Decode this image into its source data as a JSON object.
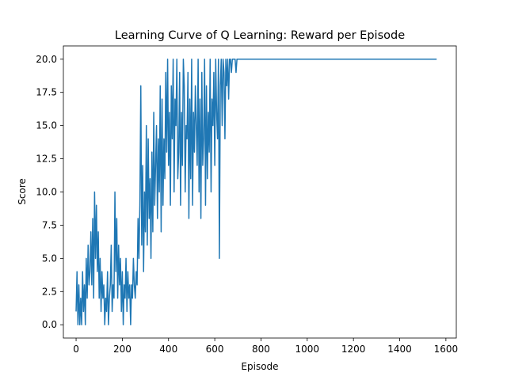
{
  "chart_data": {
    "type": "line",
    "title": "Learning Curve of Q Learning: Reward per Episode",
    "xlabel": "Episode",
    "ylabel": "Score",
    "xlim": [
      -55,
      1645
    ],
    "ylim": [
      -1,
      21
    ],
    "xticks": [
      0,
      200,
      400,
      600,
      800,
      1000,
      1200,
      1400,
      1600
    ],
    "xtick_labels": [
      "0",
      "200",
      "400",
      "600",
      "800",
      "1000",
      "1200",
      "1400",
      "1600"
    ],
    "yticks": [
      0,
      2.5,
      5,
      7.5,
      10,
      12.5,
      15,
      17.5,
      20
    ],
    "ytick_labels": [
      "0.0",
      "2.5",
      "5.0",
      "7.5",
      "10.0",
      "12.5",
      "15.0",
      "17.5",
      "20.0"
    ],
    "grid": false,
    "line_color": "#1f77b4",
    "series": [
      {
        "x": [
          0,
          4,
          8,
          12,
          16,
          20,
          24,
          28,
          32,
          36,
          40,
          44,
          48,
          52,
          56,
          60,
          64,
          68,
          72,
          76,
          80,
          84,
          88,
          92,
          96,
          100,
          104,
          108,
          112,
          116,
          120,
          124,
          128,
          132,
          136,
          140,
          144,
          148,
          152,
          156,
          160,
          164,
          168,
          172,
          176,
          180,
          184,
          188,
          192,
          196,
          200,
          204,
          208,
          212,
          216,
          220,
          224,
          228,
          232,
          236,
          240,
          244,
          248,
          252,
          256,
          260,
          264,
          268,
          272,
          276,
          280,
          284,
          288,
          292,
          296,
          300,
          304,
          308,
          312,
          316,
          320,
          324,
          328,
          332,
          336,
          340,
          344,
          348,
          352,
          356,
          360,
          364,
          368,
          372,
          376,
          380,
          384,
          388,
          392,
          396,
          400,
          404,
          408,
          412,
          416,
          420,
          424,
          428,
          432,
          436,
          440,
          444,
          448,
          452,
          456,
          460,
          464,
          468,
          472,
          476,
          480,
          484,
          488,
          492,
          496,
          500,
          504,
          508,
          512,
          516,
          520,
          524,
          528,
          532,
          536,
          540,
          544,
          548,
          552,
          556,
          560,
          564,
          568,
          572,
          576,
          580,
          584,
          588,
          592,
          596,
          600,
          604,
          608,
          612,
          616,
          620,
          624,
          628,
          632,
          636,
          640,
          644,
          648,
          652,
          656,
          660,
          664,
          668,
          672,
          676,
          680,
          684,
          688,
          692,
          696,
          700,
          704,
          720,
          800,
          900,
          1000,
          1100,
          1200,
          1300,
          1400,
          1500,
          1560
        ],
        "y": [
          1,
          4,
          0,
          3,
          0,
          2,
          0,
          4,
          1,
          3,
          0,
          5,
          2,
          6,
          3,
          4,
          7,
          3,
          8,
          2,
          10,
          5,
          9,
          4,
          7,
          2,
          5,
          1,
          4,
          2,
          3,
          0,
          2,
          1,
          4,
          0,
          2,
          3,
          6,
          1,
          3,
          2,
          10,
          4,
          8,
          2,
          6,
          3,
          5,
          1,
          4,
          0,
          3,
          2,
          5,
          1,
          4,
          2,
          3,
          0,
          3,
          2,
          5,
          3,
          2,
          4,
          3,
          8,
          5,
          9,
          18,
          6,
          12,
          4,
          10,
          7,
          15,
          6,
          14,
          8,
          11,
          5,
          13,
          7,
          16,
          9,
          12,
          15,
          8,
          14,
          10,
          18,
          7,
          17,
          9,
          14,
          11,
          19,
          13,
          20,
          12,
          16,
          9,
          18,
          14,
          20,
          10,
          17,
          15,
          20,
          11,
          13,
          19,
          9,
          16,
          12,
          20,
          18,
          10,
          15,
          14,
          19,
          8,
          17,
          11,
          20,
          9,
          16,
          13,
          18,
          15,
          12,
          20,
          10,
          17,
          8,
          19,
          12,
          14,
          20,
          9,
          18,
          11,
          16,
          13,
          20,
          10,
          17,
          15,
          19,
          12,
          20,
          16,
          14,
          20,
          5,
          18,
          20,
          15,
          20,
          19,
          14,
          20,
          18,
          20,
          17,
          20,
          20,
          19,
          20,
          20,
          20,
          20,
          19,
          20,
          20,
          20,
          20,
          20,
          20,
          20,
          20,
          20,
          20,
          20,
          20,
          20
        ]
      }
    ]
  }
}
